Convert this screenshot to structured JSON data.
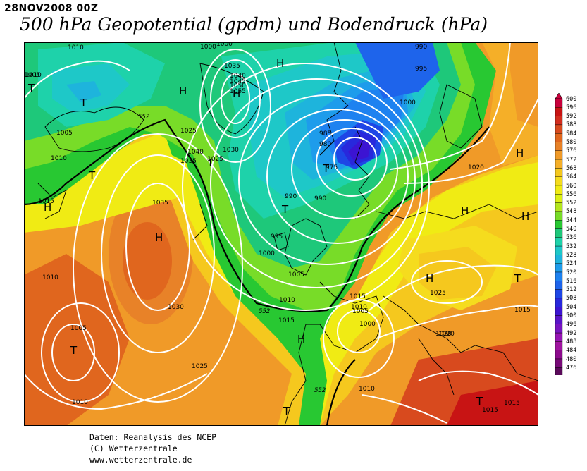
{
  "header": {
    "date": "28NOV2008 00Z",
    "title": "500 hPa Geopotential (gpdm) und Bodendruck (hPa)"
  },
  "footer": {
    "line1": "Daten: Reanalysis des NCEP",
    "line2": "(C) Wetterzentrale",
    "line3": "www.wetterzentrale.de"
  },
  "legend": {
    "levels": [
      "600",
      "596",
      "592",
      "588",
      "584",
      "580",
      "576",
      "572",
      "568",
      "564",
      "560",
      "556",
      "552",
      "548",
      "544",
      "540",
      "536",
      "532",
      "528",
      "524",
      "520",
      "516",
      "512",
      "508",
      "504",
      "500",
      "496",
      "492",
      "488",
      "484",
      "480",
      "476"
    ],
    "colors": [
      "#c8003c",
      "#c81414",
      "#d22d1e",
      "#d84a1e",
      "#e0661e",
      "#e88228",
      "#f09a28",
      "#f5af28",
      "#f5c81e",
      "#f5dc1e",
      "#f0eb14",
      "#dcf014",
      "#b4e61e",
      "#78dc28",
      "#28c832",
      "#1ec87a",
      "#1ed2aa",
      "#1ec8c8",
      "#1eb4dc",
      "#1e9ceb",
      "#1e82f0",
      "#1e64eb",
      "#1e46e6",
      "#2828dc",
      "#3c14d2",
      "#5a14c8",
      "#7814c0",
      "#9614b4",
      "#a014a0",
      "#8c0a8c",
      "#780a78",
      "#5a0a5a"
    ]
  },
  "map": {
    "pressure_labels": [
      "1010",
      "1010",
      "995",
      "990",
      "1000",
      "1000",
      "1035",
      "1040",
      "1045",
      "1050",
      "1055",
      "1025",
      "1030",
      "1040",
      "1035",
      "1025",
      "985",
      "980",
      "975",
      "990",
      "990",
      "995",
      "1000",
      "1005",
      "1010",
      "1015",
      "1010",
      "1005",
      "1000",
      "1015",
      "1020",
      "1025",
      "1015",
      "1020",
      "1010",
      "1035",
      "1030",
      "1010",
      "1005",
      "1025",
      "1010",
      "1015",
      "1015",
      "1015",
      "1005",
      "1010",
      "1000",
      "1005",
      "1020"
    ],
    "geopotential_labels": [
      "552",
      "552",
      "552"
    ],
    "high_markers": [
      "H",
      "H",
      "H",
      "H",
      "H",
      "H",
      "H",
      "H",
      "H",
      "H"
    ],
    "low_markers": [
      "T",
      "T",
      "T",
      "T",
      "T",
      "T",
      "T",
      "T",
      "T",
      "T"
    ]
  }
}
